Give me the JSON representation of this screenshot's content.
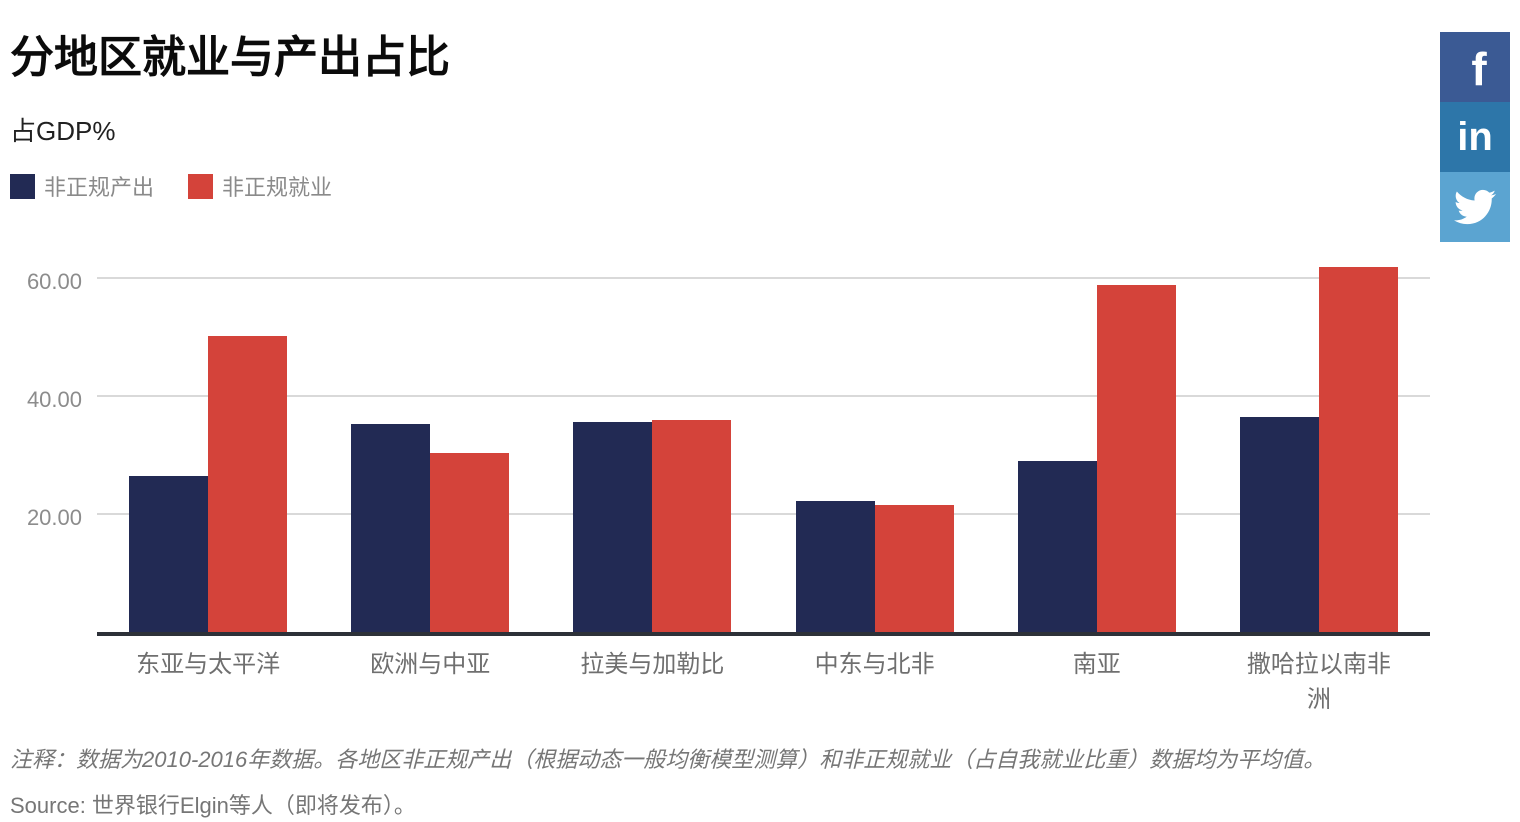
{
  "header": {
    "title": "分地区就业与产出占比",
    "subtitle": "占GDP%"
  },
  "legend": [
    {
      "label": "非正规产出",
      "color": "#222a54"
    },
    {
      "label": "非正规就业",
      "color": "#d4433a"
    }
  ],
  "social": [
    {
      "name": "facebook",
      "glyph": "f",
      "color": "#3b5a94"
    },
    {
      "name": "linkedin",
      "glyph": "in",
      "color": "#2d76a9"
    },
    {
      "name": "twitter",
      "glyph": "twitter-bird",
      "color": "#5ba4d1"
    }
  ],
  "chart_data": {
    "type": "bar",
    "title": "分地区就业与产出占比",
    "xlabel": "",
    "ylabel": "占GDP%",
    "categories": [
      "东亚与太平洋",
      "欧洲与中亚",
      "拉美与加勒比",
      "中东与北非",
      "南亚",
      "撒哈拉以南非洲"
    ],
    "series": [
      {
        "name": "非正规产出",
        "color": "#222a54",
        "values": [
          26.5,
          35.2,
          35.5,
          22.2,
          29.0,
          36.4
        ]
      },
      {
        "name": "非正规就业",
        "color": "#d4433a",
        "values": [
          50.1,
          30.3,
          35.9,
          21.5,
          58.8,
          61.9
        ]
      }
    ],
    "ylim": [
      0,
      65.4
    ],
    "yticks": [
      20,
      40,
      60
    ],
    "ytick_labels": [
      "20.00",
      "40.00",
      "60.00"
    ],
    "grid": true,
    "legend_position": "top-left"
  },
  "notes": {
    "note": "注释：数据为2010-2016年数据。各地区非正规产出（根据动态一般均衡模型测算）和非正规就业（占自我就业比重）数据均为平均值。",
    "source": "Source: 世界银行Elgin等人（即将发布）。"
  }
}
